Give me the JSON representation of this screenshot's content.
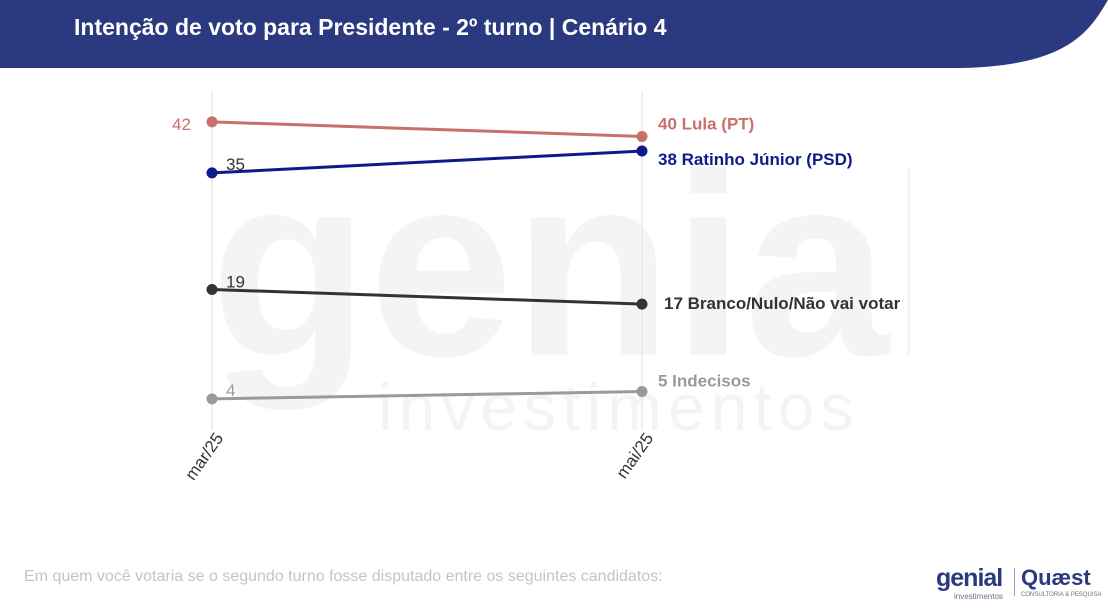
{
  "header": {
    "title": "Intenção de voto para Presidente - 2º turno | Cenário 4",
    "background": "#2b3a80"
  },
  "watermark": {
    "brand": "genial",
    "sub": "investimentos"
  },
  "footer": {
    "question": "Em quem você votaria se o segundo turno fosse disputado entre os seguintes candidatos:",
    "logo_genial": "genial",
    "logo_genial_sub": "investimentos",
    "logo_quaest": "Quæst",
    "logo_quaest_sub": "CONSULTORIA & PESQUISA"
  },
  "chart_data": {
    "type": "line",
    "title": "Intenção de voto para Presidente - 2º turno | Cenário 4",
    "categories": [
      "mar/25",
      "mai/25"
    ],
    "ylim": [
      0,
      45
    ],
    "grid": "vertical",
    "series": [
      {
        "name": "Lula (PT)",
        "values": [
          42,
          40
        ],
        "color": "#c9706a"
      },
      {
        "name": "Ratinho Júnior (PSD)",
        "values": [
          35,
          38
        ],
        "color": "#0f1a8a"
      },
      {
        "name": "Branco/Nulo/Não vai votar",
        "values": [
          19,
          17
        ],
        "color": "#333333"
      },
      {
        "name": "Indecisos",
        "values": [
          4,
          5
        ],
        "color": "#9a9a9a"
      }
    ]
  }
}
